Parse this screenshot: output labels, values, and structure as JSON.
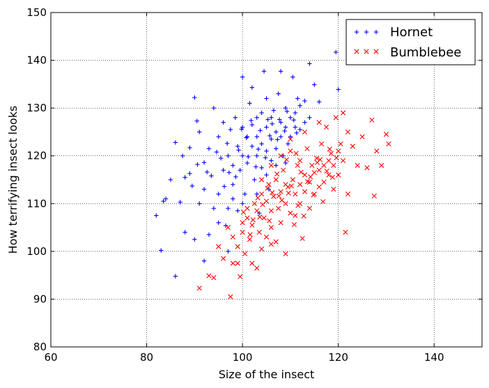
{
  "chart_data": {
    "type": "scatter",
    "title": "",
    "xlabel": "Size of the insect",
    "ylabel": "How terrifying insect looks",
    "xlim": [
      60,
      150
    ],
    "ylim": [
      80,
      150
    ],
    "xticks": [
      60,
      80,
      100,
      120,
      140
    ],
    "yticks": [
      80,
      90,
      100,
      110,
      120,
      130,
      140,
      150
    ],
    "grid": true,
    "legend_position": "top-right",
    "series": [
      {
        "name": "Hornet",
        "marker": "plus",
        "color": "#0000ff",
        "points": [
          [
            82,
            107.5
          ],
          [
            83,
            100.2
          ],
          [
            83.5,
            110.5
          ],
          [
            84,
            111
          ],
          [
            85,
            115
          ],
          [
            86,
            94.8
          ],
          [
            86,
            122.8
          ],
          [
            87,
            110.3
          ],
          [
            88,
            115.5
          ],
          [
            89,
            116.3
          ],
          [
            89,
            121.7
          ],
          [
            90,
            102.5
          ],
          [
            90,
            132.2
          ],
          [
            90.5,
            127.3
          ],
          [
            91,
            110
          ],
          [
            92,
            118.6
          ],
          [
            92,
            113
          ],
          [
            93,
            121.5
          ],
          [
            93,
            103.5
          ],
          [
            94,
            130
          ],
          [
            95,
            112
          ],
          [
            95,
            124
          ],
          [
            96,
            117
          ],
          [
            96,
            127
          ],
          [
            96.5,
            105.4
          ],
          [
            97,
            120
          ],
          [
            97,
            109
          ],
          [
            97.5,
            125.5
          ],
          [
            98,
            118
          ],
          [
            98,
            114
          ],
          [
            98.5,
            128
          ],
          [
            99,
            122
          ],
          [
            99,
            108.5
          ],
          [
            99.5,
            117
          ],
          [
            100,
            136.5
          ],
          [
            100,
            126
          ],
          [
            100,
            120
          ],
          [
            100.5,
            112
          ],
          [
            101,
            124
          ],
          [
            101,
            118.5
          ],
          [
            101.5,
            131
          ],
          [
            102,
            122
          ],
          [
            102,
            126.5
          ],
          [
            102,
            134.3
          ],
          [
            102.5,
            115
          ],
          [
            103,
            120
          ],
          [
            103,
            128
          ],
          [
            103,
            124
          ],
          [
            103.5,
            108
          ],
          [
            104,
            122.5
          ],
          [
            104,
            129
          ],
          [
            104,
            117.5
          ],
          [
            104.5,
            137.7
          ],
          [
            105,
            126
          ],
          [
            105,
            121
          ],
          [
            105,
            132
          ],
          [
            105.5,
            113
          ],
          [
            106,
            123.5
          ],
          [
            106,
            128
          ],
          [
            106,
            119
          ],
          [
            106.5,
            129.5
          ],
          [
            107,
            125
          ],
          [
            107,
            121.5
          ],
          [
            107.5,
            133
          ],
          [
            108,
            127
          ],
          [
            108,
            124
          ],
          [
            108,
            137.7
          ],
          [
            108.5,
            120
          ],
          [
            109,
            126
          ],
          [
            109,
            130
          ],
          [
            109.5,
            122.5
          ],
          [
            110,
            128
          ],
          [
            110,
            124
          ],
          [
            110.5,
            136.5
          ],
          [
            111,
            129
          ],
          [
            111,
            126
          ],
          [
            111.5,
            132
          ],
          [
            112,
            125.5
          ],
          [
            112,
            130.5
          ],
          [
            113,
            127
          ],
          [
            113,
            131.5
          ],
          [
            114,
            128
          ],
          [
            114,
            139.3
          ],
          [
            115,
            134.9
          ],
          [
            116,
            131.3
          ],
          [
            119.5,
            141.7
          ],
          [
            120,
            133.9
          ],
          [
            88,
            104
          ],
          [
            92,
            98
          ],
          [
            95,
            106
          ],
          [
            97,
            100
          ],
          [
            100,
            110
          ],
          [
            103,
            112
          ],
          [
            91,
            125
          ],
          [
            94,
            109
          ],
          [
            98,
            111
          ],
          [
            105,
            116
          ],
          [
            107,
            118
          ],
          [
            109,
            118.5
          ],
          [
            87.5,
            120
          ],
          [
            89.5,
            113.7
          ],
          [
            93.5,
            115.8
          ],
          [
            95.5,
            119.5
          ],
          [
            97.2,
            116.5
          ],
          [
            99.2,
            121.2
          ],
          [
            101.2,
            119.8
          ],
          [
            103.7,
            125.3
          ],
          [
            105.7,
            124.2
          ],
          [
            107.7,
            127.6
          ],
          [
            96.8,
            122.6
          ],
          [
            100.8,
            123.8
          ],
          [
            102.8,
            117.7
          ],
          [
            104.8,
            119.6
          ],
          [
            106.2,
            126.7
          ],
          [
            108.8,
            125.2
          ],
          [
            110.7,
            127.5
          ],
          [
            94.6,
            120.8
          ],
          [
            98.6,
            115.6
          ],
          [
            92.6,
            116.6
          ],
          [
            90.6,
            118.2
          ],
          [
            96.2,
            113.6
          ],
          [
            99.8,
            125.6
          ],
          [
            101.8,
            127.4
          ],
          [
            103.3,
            121.4
          ],
          [
            105.3,
            127.6
          ],
          [
            107.3,
            123.4
          ],
          [
            109.3,
            129.3
          ],
          [
            111.3,
            124.8
          ]
        ]
      },
      {
        "name": "Bumblebee",
        "marker": "x",
        "color": "#ff0000",
        "points": [
          [
            91,
            92.3
          ],
          [
            93,
            94.9
          ],
          [
            94,
            94.5
          ],
          [
            96,
            98.5
          ],
          [
            97.5,
            90.5
          ],
          [
            98,
            97.5
          ],
          [
            99,
            101
          ],
          [
            99.5,
            94.7
          ],
          [
            100,
            104
          ],
          [
            100.5,
            99.5
          ],
          [
            101,
            107
          ],
          [
            101.5,
            102.5
          ],
          [
            102,
            105.5
          ],
          [
            102.5,
            110
          ],
          [
            103,
            96.5
          ],
          [
            103,
            108.5
          ],
          [
            103.5,
            104
          ],
          [
            104,
            112
          ],
          [
            104,
            100.5
          ],
          [
            104.5,
            107
          ],
          [
            105,
            110.5
          ],
          [
            105,
            103
          ],
          [
            105.5,
            114
          ],
          [
            106,
            108.5
          ],
          [
            106,
            105
          ],
          [
            106.5,
            111.5
          ],
          [
            107,
            115
          ],
          [
            107,
            102
          ],
          [
            107.5,
            109
          ],
          [
            108,
            112.5
          ],
          [
            108,
            106
          ],
          [
            108.5,
            117
          ],
          [
            109,
            110
          ],
          [
            109,
            99.5
          ],
          [
            109.5,
            113.5
          ],
          [
            110,
            108
          ],
          [
            110,
            121
          ],
          [
            110.5,
            115
          ],
          [
            111,
            112
          ],
          [
            111,
            107.5
          ],
          [
            111.5,
            118
          ],
          [
            112,
            114
          ],
          [
            112,
            110
          ],
          [
            112.5,
            102.7
          ],
          [
            113,
            116
          ],
          [
            113,
            112.5
          ],
          [
            113.5,
            121.5
          ],
          [
            114,
            114.5
          ],
          [
            114,
            109
          ],
          [
            114.5,
            118
          ],
          [
            115,
            116.5
          ],
          [
            115,
            112
          ],
          [
            115.5,
            119.5
          ],
          [
            116,
            117
          ],
          [
            116,
            113.5
          ],
          [
            116.5,
            122.5
          ],
          [
            117,
            118
          ],
          [
            117,
            114.5
          ],
          [
            117.5,
            126
          ],
          [
            118,
            119
          ],
          [
            118,
            116
          ],
          [
            118.5,
            120.5
          ],
          [
            119,
            118
          ],
          [
            119,
            113
          ],
          [
            119.5,
            128
          ],
          [
            120,
            121
          ],
          [
            120,
            116
          ],
          [
            120.5,
            122.5
          ],
          [
            121,
            119
          ],
          [
            121,
            129
          ],
          [
            121.5,
            104
          ],
          [
            122,
            125
          ],
          [
            123,
            122
          ],
          [
            124,
            118
          ],
          [
            125,
            124
          ],
          [
            126,
            117.5
          ],
          [
            127,
            127.5
          ],
          [
            127.5,
            111.6
          ],
          [
            128,
            121
          ],
          [
            129,
            118
          ],
          [
            130,
            124.5
          ],
          [
            130.5,
            122.5
          ],
          [
            97,
            105
          ],
          [
            101,
            109
          ],
          [
            104,
            115
          ],
          [
            106,
            118
          ],
          [
            109,
            114
          ],
          [
            112,
            119
          ],
          [
            95,
            101
          ],
          [
            98,
            103
          ],
          [
            100,
            106
          ],
          [
            102,
            97.5
          ],
          [
            99,
            97.5
          ],
          [
            106,
            101.5
          ],
          [
            108,
            120
          ],
          [
            110,
            123.5
          ],
          [
            113,
            125
          ],
          [
            116,
            127
          ],
          [
            122,
            112
          ],
          [
            100.2,
            108.2
          ],
          [
            102.2,
            106.6
          ],
          [
            104.2,
            109.8
          ],
          [
            106.2,
            112.3
          ],
          [
            108.2,
            110.7
          ],
          [
            110.2,
            113.7
          ],
          [
            112.2,
            116.6
          ],
          [
            114.2,
            115.6
          ],
          [
            116.2,
            119.2
          ],
          [
            118.2,
            121.4
          ],
          [
            101.6,
            103.5
          ],
          [
            103.6,
            107.2
          ],
          [
            105.6,
            106.4
          ],
          [
            107.6,
            111.6
          ],
          [
            109.6,
            112.2
          ],
          [
            111.6,
            109.6
          ],
          [
            113.6,
            114.6
          ],
          [
            115.6,
            118.6
          ],
          [
            117.6,
            116.8
          ],
          [
            119.6,
            119.6
          ],
          [
            105.2,
            113.2
          ],
          [
            107.2,
            116.2
          ],
          [
            109.2,
            119.2
          ],
          [
            111.2,
            120.5
          ],
          [
            103.2,
            111.2
          ],
          [
            110.8,
            105.6
          ],
          [
            112.8,
            107.4
          ],
          [
            114.8,
            111.8
          ],
          [
            116.8,
            110.4
          ],
          [
            118.8,
            115.5
          ]
        ]
      }
    ]
  }
}
